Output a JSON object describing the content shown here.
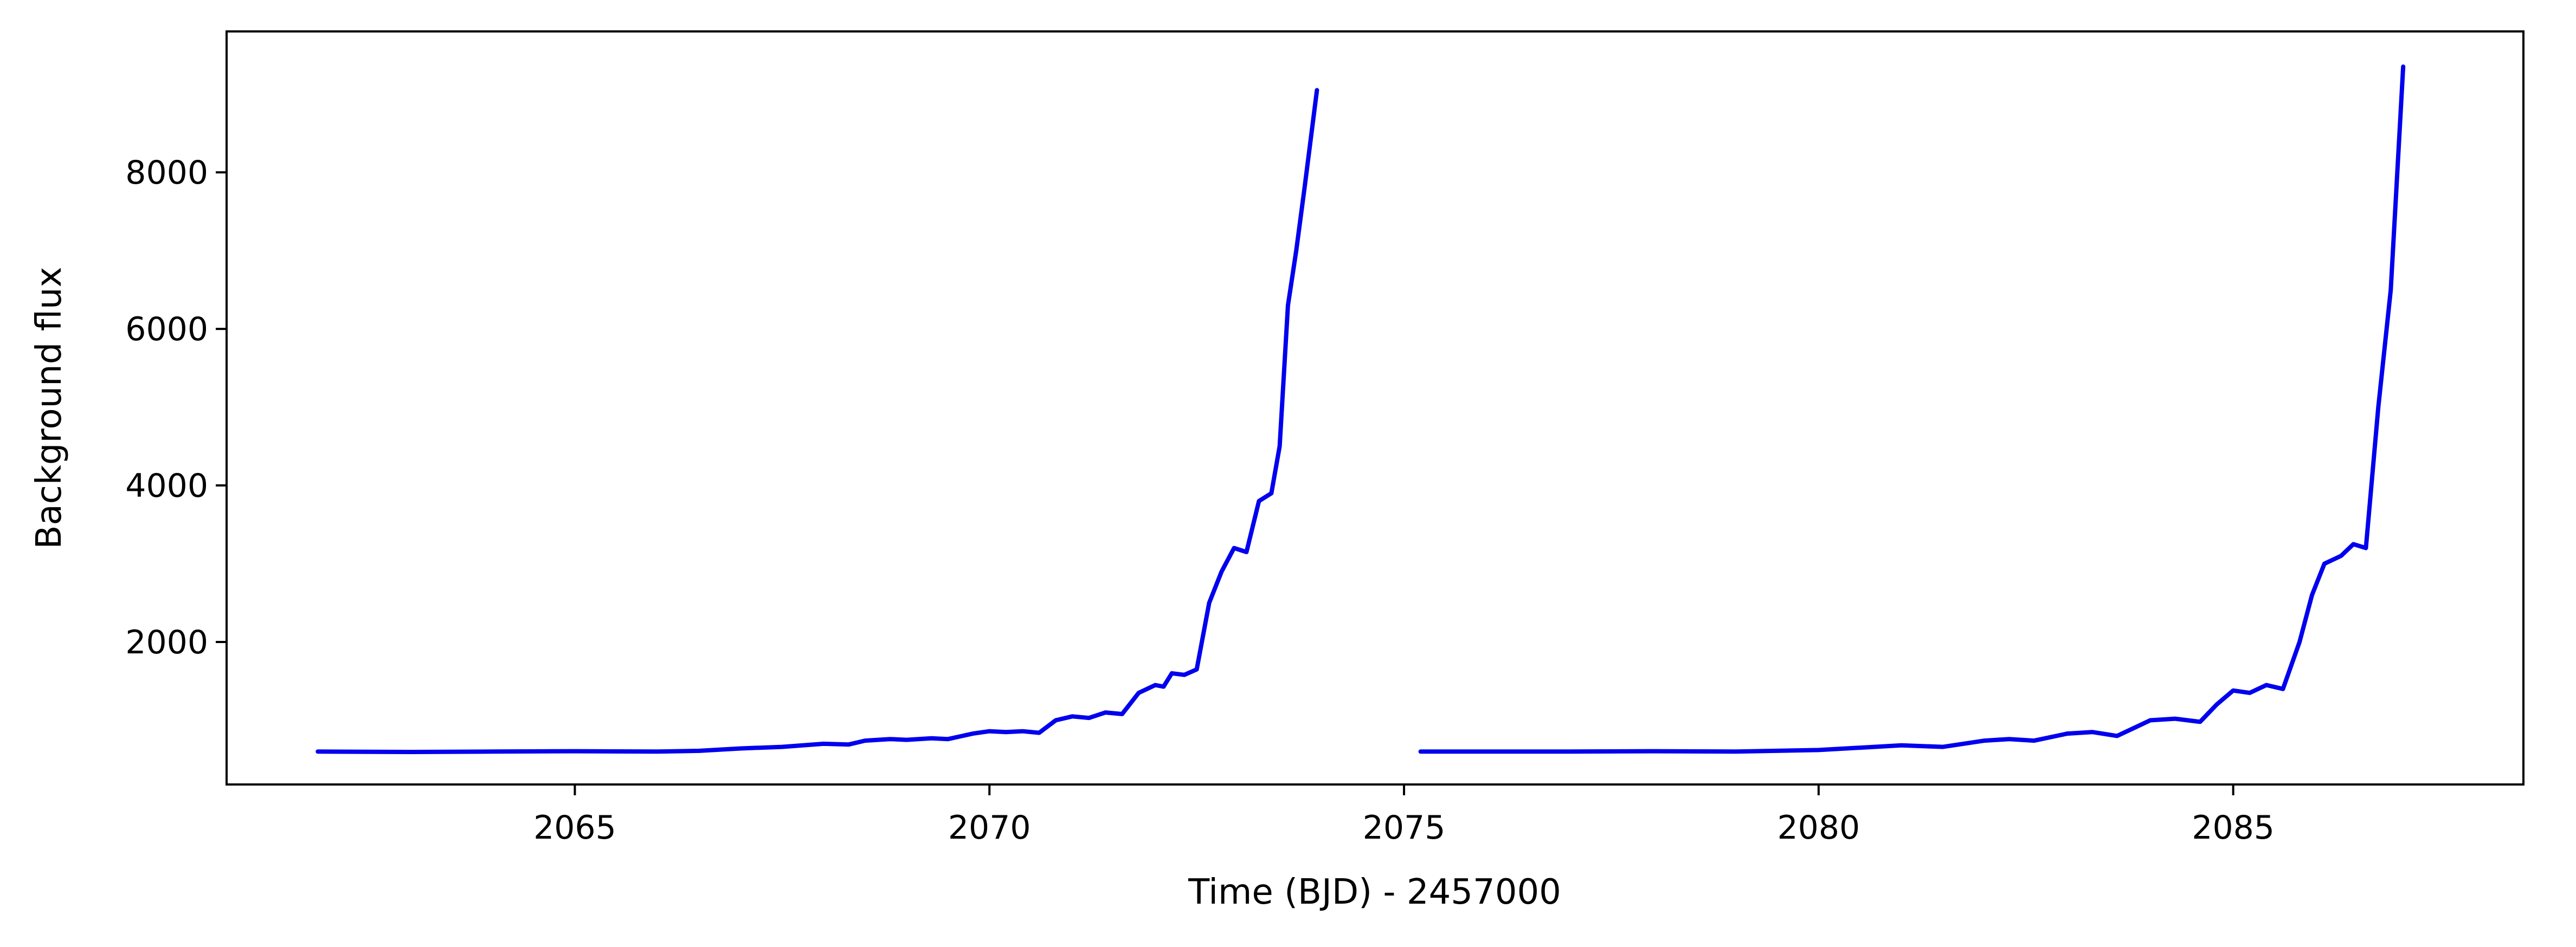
{
  "chart_data": {
    "type": "line",
    "title": "",
    "xlabel": "Time (BJD) - 2457000",
    "ylabel": "Background flux",
    "xlim": [
      2060.8,
      2088.5
    ],
    "ylim": [
      180,
      9800
    ],
    "xticks": [
      2065,
      2070,
      2075,
      2080,
      2085
    ],
    "yticks": [
      2000,
      4000,
      6000,
      8000
    ],
    "grid": false,
    "legend": "none",
    "colors": {
      "line": "#0000ee",
      "axes": "#000000",
      "background": "#ffffff"
    },
    "series": [
      {
        "x": [
          2061.9,
          2063.0,
          2064.0,
          2065.0,
          2066.0,
          2066.5,
          2067.0,
          2067.5,
          2068.0,
          2068.3,
          2068.5,
          2068.8,
          2069.0,
          2069.3,
          2069.5,
          2069.8,
          2070.0,
          2070.2,
          2070.4,
          2070.6,
          2070.8,
          2071.0,
          2071.2,
          2071.4,
          2071.6,
          2071.8,
          2072.0,
          2072.1,
          2072.2,
          2072.35,
          2072.5,
          2072.65,
          2072.8,
          2072.95,
          2073.1,
          2073.25,
          2073.4,
          2073.5,
          2073.6,
          2073.7,
          2073.8,
          2073.95
        ],
        "y": [
          600,
          595,
          600,
          605,
          600,
          610,
          640,
          660,
          700,
          690,
          740,
          760,
          750,
          770,
          760,
          830,
          860,
          850,
          860,
          840,
          1000,
          1050,
          1030,
          1100,
          1080,
          1350,
          1450,
          1430,
          1600,
          1580,
          1650,
          2500,
          2900,
          3200,
          3150,
          3800,
          3900,
          4500,
          6300,
          7000,
          7800,
          9050
        ]
      },
      {
        "x": [
          2075.2,
          2076.0,
          2077.0,
          2078.0,
          2079.0,
          2080.0,
          2080.5,
          2081.0,
          2081.5,
          2082.0,
          2082.3,
          2082.6,
          2083.0,
          2083.3,
          2083.6,
          2084.0,
          2084.3,
          2084.6,
          2084.8,
          2085.0,
          2085.2,
          2085.4,
          2085.6,
          2085.8,
          2085.95,
          2086.1,
          2086.3,
          2086.45,
          2086.6,
          2086.75,
          2086.9,
          2087.05
        ],
        "y": [
          600,
          600,
          600,
          605,
          600,
          620,
          650,
          680,
          660,
          740,
          760,
          740,
          830,
          850,
          800,
          1000,
          1020,
          980,
          1200,
          1380,
          1350,
          1450,
          1400,
          2000,
          2600,
          3000,
          3100,
          3250,
          3200,
          5000,
          6500,
          9350
        ]
      }
    ]
  }
}
